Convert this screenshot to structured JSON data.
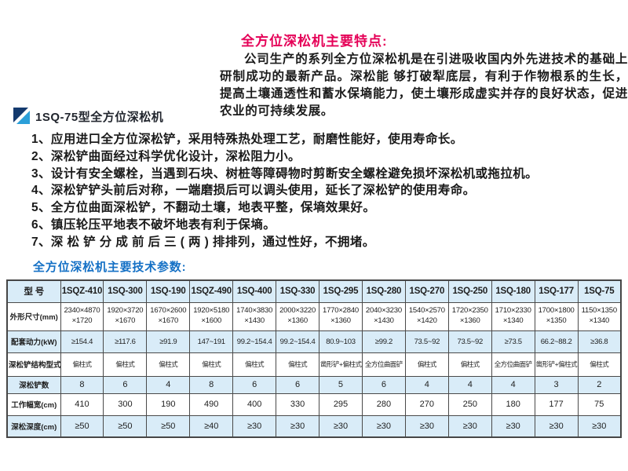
{
  "page": {
    "features_heading": "全方位深松机主要特点:",
    "intro_paragraph": "公司生产的系列全方位深松机是在引进吸收国内外先进技术的基础上研制成功的最新产品。深松能 够打破犁底层，有利于作物根系的生长，提高土壤通透性和蓄水保墒能力，使土壤形成虚实并存的良好状态，促进农业的可持续发展。",
    "logo_icon": "dual-triangle-logo-icon",
    "product_title": "1SQ-75型全方位深松机",
    "features": [
      "1、应用进口全方位深松铲，采用特殊热处理工艺，耐磨性能好，使用寿命长。",
      "2、深松铲曲面经过科学优化设计，深松阻力小。",
      "3、设计有安全螺栓，当遇到石块、树桩等障碍物时剪断安全螺栓避免损坏深松机或拖拉机。",
      "4、深松铲铲头前后对称，一端磨损后可以调头使用，延长了深松铲的使用寿命。",
      "5、全方位曲面深松铲，不翻动土壤，地表平整，保墒效果好。",
      "6、镇压轮压平地表不破坏地表有利于保墒。",
      "7、深 松 铲 分 成 前 后 三 ( 两 ) 排排列，通过性好，不拥堵。"
    ],
    "specs_heading": "全方位深松机主要技术参数:"
  },
  "colors": {
    "heading_red": "#e50057",
    "heading_blue": "#1470c5",
    "table_stripe_blue": "#d9ecf8",
    "table_border": "#4a4a4a",
    "logo_dark_blue": "#143a6e",
    "logo_light_blue": "#2b9fd9"
  },
  "table": {
    "header": [
      "型 号",
      "1SQZ-410",
      "1SQ-300",
      "1SQ-190",
      "1SQZ-490",
      "1SQ-400",
      "1SQ-330",
      "1SQ-295",
      "1SQ-280",
      "1SQ-270",
      "1SQ-250",
      "1SQ-180",
      "1SQ-177",
      "1SQ-75"
    ],
    "rows": [
      {
        "label": "外形尺寸(mm)",
        "values": [
          "2340×4870 ×1720",
          "1920×3720 ×1670",
          "1670×2600 ×1670",
          "1920×5180 ×1600",
          "1740×3830 ×1430",
          "2000×3220 ×1360",
          "1770×2840 ×1360",
          "2040×3230 ×1430",
          "1540×2570 ×1420",
          "1720×2350 ×1360",
          "1710×2330 ×1340",
          "1700×1800 ×1350",
          "1150×1350 ×1340"
        ]
      },
      {
        "label": "配套动力(kW)",
        "values": [
          "≥154.4",
          "≥117.6",
          "≥91.9",
          "147~191",
          "99.2~154.4",
          "99.2~154.4",
          "80.9~103",
          "≥99.2",
          "73.5~92",
          "73.5~92",
          "≥73.5",
          "66.2~88.2",
          "≥36.8"
        ]
      },
      {
        "label": "深松铲结构型式",
        "values": [
          "偏柱式",
          "偏柱式",
          "偏柱式",
          "偏柱式",
          "偏柱式",
          "偏柱式",
          "凿形铲+偏柱式",
          "全方位曲面铲",
          "偏柱式",
          "偏柱式",
          "全方位曲面铲",
          "凿形铲+偏柱式",
          "偏柱式"
        ]
      },
      {
        "label": "深松铲数",
        "values": [
          "8",
          "6",
          "4",
          "8",
          "6",
          "6",
          "5",
          "6",
          "4",
          "4",
          "4",
          "3",
          "2"
        ]
      },
      {
        "label": "工作幅宽(cm)",
        "values": [
          "410",
          "300",
          "190",
          "490",
          "400",
          "330",
          "295",
          "280",
          "270",
          "250",
          "180",
          "177",
          "75"
        ]
      },
      {
        "label": "深松深度(cm)",
        "values": [
          "≥50",
          "≥50",
          "≥50",
          "≥40",
          "≥30",
          "≥30",
          "≥30",
          "≥30",
          "≥30",
          "≥30",
          "≥30",
          "≥30",
          "≥30"
        ]
      }
    ]
  }
}
